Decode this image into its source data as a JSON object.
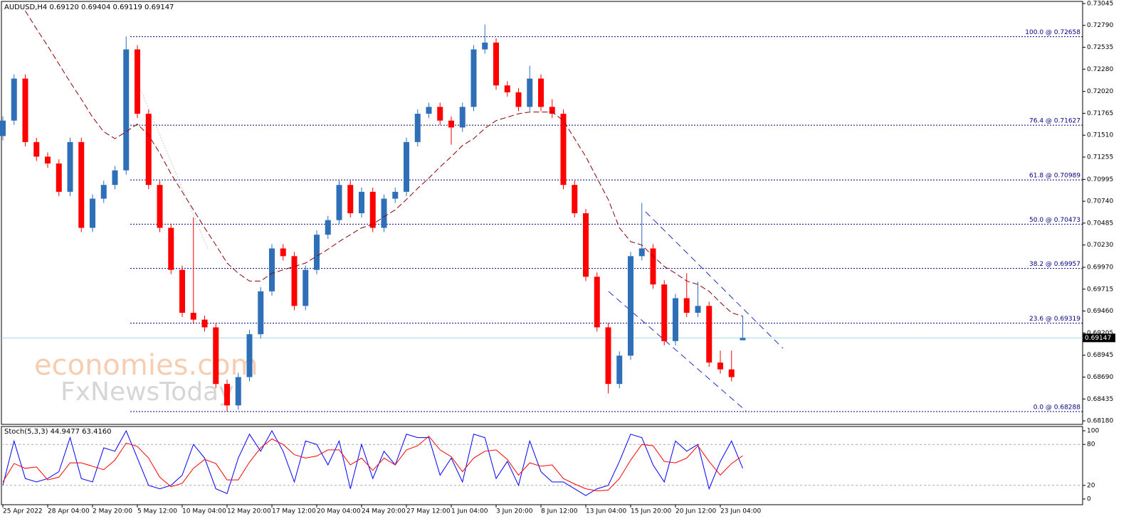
{
  "chart_data": {
    "type": "candlestick",
    "title": "AUDUSD,H4  0.69120 0.69404 0.69119 0.69147",
    "x_labels": [
      "25 Apr 2022",
      "28 Apr 04:00",
      "2 May 20:00",
      "5 May 12:00",
      "10 May 04:00",
      "12 May 20:00",
      "17 May 12:00",
      "20 May 04:00",
      "24 May 20:00",
      "27 May 12:00",
      "1 Jun 04:00",
      "3 Jun 20:00",
      "8 Jun 12:00",
      "13 Jun 04:00",
      "15 Jun 20:00",
      "20 Jun 12:00",
      "23 Jun 04:00"
    ],
    "open": [
      0.715,
      0.7168,
      0.7217,
      0.7143,
      0.7126,
      0.7118,
      0.7085,
      0.7143,
      0.7043,
      0.7077,
      0.7093,
      0.711,
      0.7251,
      0.7176,
      0.7093,
      0.7043,
      0.6994,
      0.6944,
      0.6936,
      0.6927,
      0.6861,
      0.6836,
      0.6869,
      0.6919,
      0.6969,
      0.7019,
      0.701,
      0.6952,
      0.6994,
      0.7035,
      0.7052,
      0.7093,
      0.706,
      0.7085,
      0.7043,
      0.7077,
      0.7085,
      0.7143,
      0.7176,
      0.7184,
      0.7168,
      0.716,
      0.7184,
      0.7251,
      0.7259,
      0.7209,
      0.7201,
      0.7184,
      0.7217,
      0.7184,
      0.7176,
      0.7093,
      0.706,
      0.6986,
      0.6927,
      0.6861,
      0.6894,
      0.701,
      0.7019,
      0.6977,
      0.6911,
      0.6961,
      0.6944,
      0.6952,
      0.6886,
      0.6878,
      0.6912
    ],
    "high": [
      0.7173,
      0.7222,
      0.7222,
      0.7148,
      0.7131,
      0.7123,
      0.7148,
      0.7148,
      0.7082,
      0.7098,
      0.7115,
      0.7266,
      0.7256,
      0.7181,
      0.7098,
      0.7048,
      0.6999,
      0.7055,
      0.6941,
      0.6932,
      0.6866,
      0.6874,
      0.6924,
      0.6974,
      0.7024,
      0.7024,
      0.7015,
      0.6999,
      0.704,
      0.7057,
      0.7098,
      0.7098,
      0.709,
      0.709,
      0.7082,
      0.709,
      0.7148,
      0.7181,
      0.7189,
      0.7189,
      0.7173,
      0.7189,
      0.7256,
      0.728,
      0.7264,
      0.7214,
      0.7206,
      0.7232,
      0.7222,
      0.7193,
      0.7181,
      0.7098,
      0.7065,
      0.6991,
      0.6932,
      0.6899,
      0.7015,
      0.7072,
      0.7024,
      0.6982,
      0.6966,
      0.699,
      0.698,
      0.6957,
      0.69,
      0.69,
      0.69404
    ],
    "low": [
      0.7145,
      0.7163,
      0.7138,
      0.7121,
      0.7113,
      0.708,
      0.708,
      0.7038,
      0.7038,
      0.7072,
      0.7088,
      0.7105,
      0.7171,
      0.7088,
      0.7038,
      0.6989,
      0.6939,
      0.6931,
      0.6922,
      0.6856,
      0.6829,
      0.6831,
      0.6864,
      0.6914,
      0.6964,
      0.7005,
      0.6947,
      0.6947,
      0.6989,
      0.703,
      0.7047,
      0.7055,
      0.7055,
      0.7038,
      0.7038,
      0.7072,
      0.708,
      0.7138,
      0.7171,
      0.7163,
      0.714,
      0.7155,
      0.7179,
      0.7246,
      0.7204,
      0.7196,
      0.7179,
      0.7179,
      0.7179,
      0.7171,
      0.7088,
      0.7055,
      0.6981,
      0.6922,
      0.685,
      0.6856,
      0.6889,
      0.7005,
      0.6972,
      0.6906,
      0.6906,
      0.6939,
      0.6939,
      0.6881,
      0.6873,
      0.6864,
      0.69119
    ],
    "close": [
      0.7168,
      0.7217,
      0.7143,
      0.7126,
      0.7118,
      0.7085,
      0.7143,
      0.7043,
      0.7077,
      0.7093,
      0.711,
      0.7251,
      0.7176,
      0.7093,
      0.7043,
      0.6994,
      0.6944,
      0.6936,
      0.6927,
      0.6861,
      0.6836,
      0.6869,
      0.6919,
      0.6969,
      0.7019,
      0.701,
      0.6952,
      0.6994,
      0.7035,
      0.7052,
      0.7093,
      0.706,
      0.7085,
      0.7043,
      0.7077,
      0.7085,
      0.7143,
      0.7176,
      0.7184,
      0.7168,
      0.716,
      0.7184,
      0.7251,
      0.7259,
      0.7209,
      0.7201,
      0.7184,
      0.7217,
      0.7184,
      0.7176,
      0.7093,
      0.706,
      0.6986,
      0.6927,
      0.6861,
      0.6894,
      0.701,
      0.7019,
      0.6977,
      0.6911,
      0.6961,
      0.6944,
      0.6952,
      0.6886,
      0.6878,
      0.6869,
      0.69147
    ],
    "up_color": "#2f6fb8",
    "down_color": "#ff0000",
    "ylim": [
      0.68139,
      0.73086
    ],
    "yticks": [
      0.73045,
      {
        "value": 0.7279,
        "label": "0.72790"
      },
      0.72535,
      {
        "value": 0.7228,
        "label": "0.72280"
      },
      {
        "value": 0.7202,
        "label": "0.72020"
      },
      0.71765,
      {
        "value": 0.7151,
        "label": "0.71510"
      },
      0.71255,
      0.70995,
      {
        "value": 0.7074,
        "label": "0.70740"
      },
      0.70485,
      {
        "value": 0.7023,
        "label": "0.70230"
      },
      {
        "value": 0.6997,
        "label": "0.69970"
      },
      0.69715,
      {
        "value": 0.6946,
        "label": "0.69460"
      },
      0.69205,
      0.68945,
      {
        "value": 0.6869,
        "label": "0.68690"
      },
      0.68435,
      {
        "value": 0.6818,
        "label": "0.68180"
      }
    ],
    "last_price": 0.69147,
    "moving_average": {
      "color": "#8b0000",
      "values": [
        null,
        null,
        0.7296,
        0.7275,
        0.7255,
        0.7234,
        0.7213,
        0.7193,
        0.7172,
        0.7155,
        0.7147,
        0.7155,
        0.7164,
        0.7151,
        0.713,
        0.7106,
        0.7085,
        0.7064,
        0.7043,
        0.7023,
        0.7002,
        0.699,
        0.6981,
        0.6981,
        0.699,
        0.6994,
        0.6998,
        0.7002,
        0.701,
        0.7018,
        0.7027,
        0.7035,
        0.7043,
        0.7047,
        0.7056,
        0.7064,
        0.7076,
        0.7089,
        0.7101,
        0.7114,
        0.7126,
        0.7139,
        0.7147,
        0.7159,
        0.7168,
        0.7172,
        0.7176,
        0.7178,
        0.7178,
        0.7178,
        0.7168,
        0.7147,
        0.7126,
        0.7101,
        0.7076,
        0.7043,
        0.7027,
        0.7023,
        0.701,
        0.6998,
        0.699,
        0.6981,
        0.6977,
        0.6969,
        0.6956,
        0.6944,
        0.694
      ]
    },
    "fib_color": "#000080",
    "fibonacci": [
      {
        "label": "100.0 @ 0.72658",
        "value": 0.72658
      },
      {
        "label": "76.4 @ 0.71627",
        "value": 0.71627
      },
      {
        "label": "61.8 @ 0.70989",
        "value": 0.70989
      },
      {
        "label": "50.0 @ 0.70473",
        "value": 0.70473
      },
      {
        "label": "38.2 @ 0.69957",
        "value": 0.69957
      },
      {
        "label": "23.6 @ 0.69319",
        "value": 0.69319
      },
      {
        "label": "0.0 @ 0.68288",
        "value": 0.68288
      }
    ],
    "watermark": [
      "economies.com",
      "FxNewsToday"
    ],
    "oscillator": {
      "title": "Stoch(5,3,3) 44.9477 63.4160",
      "ylim": [
        0,
        100
      ],
      "yticks": [
        100,
        80,
        20,
        0
      ],
      "levels": [
        80,
        20
      ],
      "series": [
        {
          "color": "#0000ff",
          "values": [
            20,
            85,
            30,
            25,
            30,
            40,
            90,
            30,
            25,
            75,
            70,
            100,
            60,
            20,
            15,
            20,
            35,
            80,
            60,
            15,
            8,
            60,
            95,
            70,
            100,
            70,
            25,
            85,
            80,
            50,
            85,
            15,
            80,
            30,
            70,
            50,
            95,
            90,
            90,
            35,
            60,
            25,
            95,
            90,
            30,
            55,
            20,
            85,
            40,
            25,
            25,
            15,
            5,
            15,
            20,
            55,
            95,
            90,
            50,
            25,
            85,
            70,
            80,
            15,
            55,
            85,
            44.9477
          ]
        },
        {
          "color": "#ff0000",
          "values": [
            25,
            52,
            45,
            47,
            28,
            32,
            53,
            53,
            48,
            43,
            57,
            82,
            77,
            60,
            32,
            18,
            23,
            45,
            58,
            52,
            28,
            28,
            54,
            75,
            88,
            80,
            65,
            60,
            63,
            72,
            72,
            50,
            60,
            42,
            60,
            50,
            72,
            78,
            92,
            72,
            62,
            40,
            60,
            70,
            72,
            58,
            35,
            53,
            48,
            50,
            30,
            22,
            15,
            12,
            13,
            30,
            57,
            80,
            78,
            55,
            53,
            60,
            78,
            55,
            35,
            52,
            63.416
          ]
        }
      ]
    }
  }
}
